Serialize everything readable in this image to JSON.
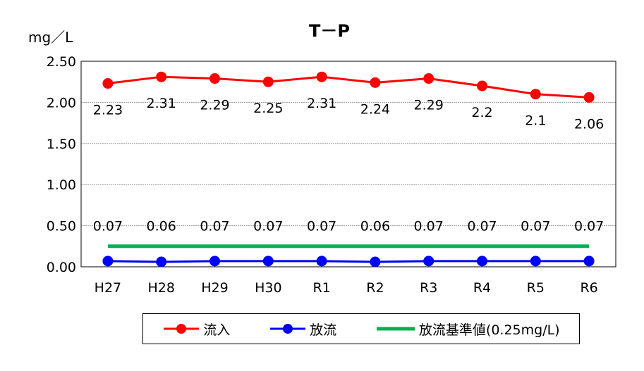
{
  "chart_data": {
    "type": "line",
    "title": "T－P",
    "ylabel": "mg／L",
    "xlabel": "",
    "categories": [
      "H27",
      "H28",
      "H29",
      "H30",
      "R1",
      "R2",
      "R3",
      "R4",
      "R5",
      "R6"
    ],
    "ylim": [
      0,
      2.5
    ],
    "yticks": [
      "0.00",
      "0.50",
      "1.00",
      "1.50",
      "2.00",
      "2.50"
    ],
    "grid": true,
    "legend_position": "bottom",
    "series": [
      {
        "name": "流入",
        "color": "#ff0000",
        "marker": "circle",
        "values": [
          2.23,
          2.31,
          2.29,
          2.25,
          2.31,
          2.24,
          2.29,
          2.2,
          2.1,
          2.06
        ],
        "labels": [
          "2.23",
          "2.31",
          "2.29",
          "2.25",
          "2.31",
          "2.24",
          "2.29",
          "2.2",
          "2.1",
          "2.06"
        ]
      },
      {
        "name": "放流",
        "color": "#0000ff",
        "marker": "circle",
        "values": [
          0.07,
          0.06,
          0.07,
          0.07,
          0.07,
          0.06,
          0.07,
          0.07,
          0.07,
          0.07
        ],
        "labels": [
          "0.07",
          "0.06",
          "0.07",
          "0.07",
          "0.07",
          "0.06",
          "0.07",
          "0.07",
          "0.07",
          "0.07"
        ]
      },
      {
        "name": "放流基準値(0.25mg/L)",
        "color": "#00b050",
        "marker": "none",
        "values": [
          0.25,
          0.25,
          0.25,
          0.25,
          0.25,
          0.25,
          0.25,
          0.25,
          0.25,
          0.25
        ]
      }
    ]
  }
}
